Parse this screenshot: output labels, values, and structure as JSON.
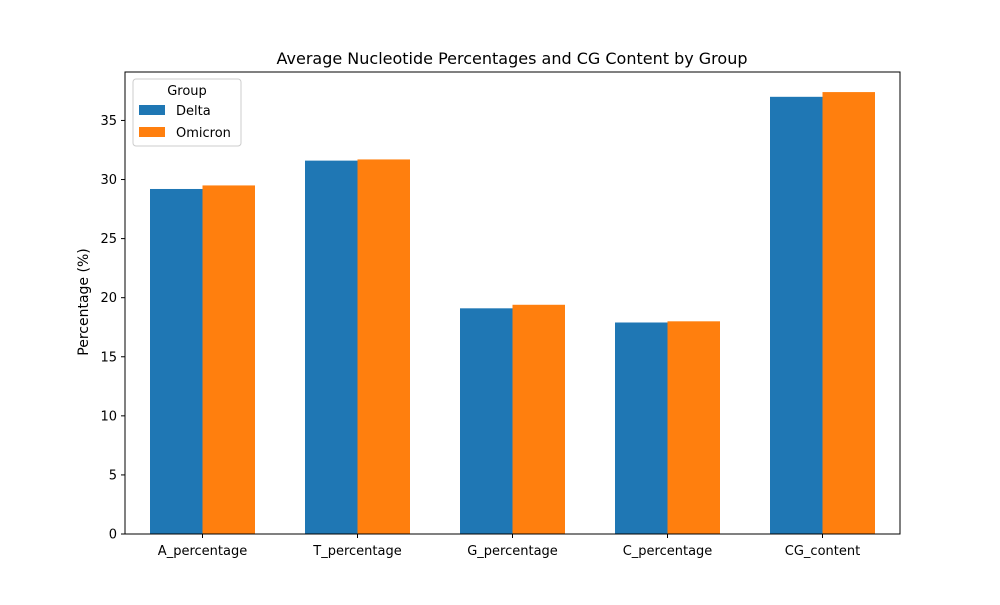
{
  "chart_data": {
    "type": "bar",
    "title": "Average Nucleotide Percentages and CG Content by Group",
    "xlabel": "",
    "ylabel": "Percentage (%)",
    "categories": [
      "A_percentage",
      "T_percentage",
      "G_percentage",
      "C_percentage",
      "CG_content"
    ],
    "series": [
      {
        "name": "Delta",
        "color": "#1f77b4",
        "values": [
          29.2,
          31.6,
          19.1,
          17.9,
          37.0
        ]
      },
      {
        "name": "Omicron",
        "color": "#ff7f0e",
        "values": [
          29.5,
          31.7,
          19.4,
          18.0,
          37.4
        ]
      }
    ],
    "ylim": [
      0,
      39.1
    ],
    "yticks": [
      0,
      5,
      10,
      15,
      20,
      25,
      30,
      35
    ],
    "grid": false,
    "legend": {
      "title": "Group",
      "placement": "top-left"
    }
  }
}
